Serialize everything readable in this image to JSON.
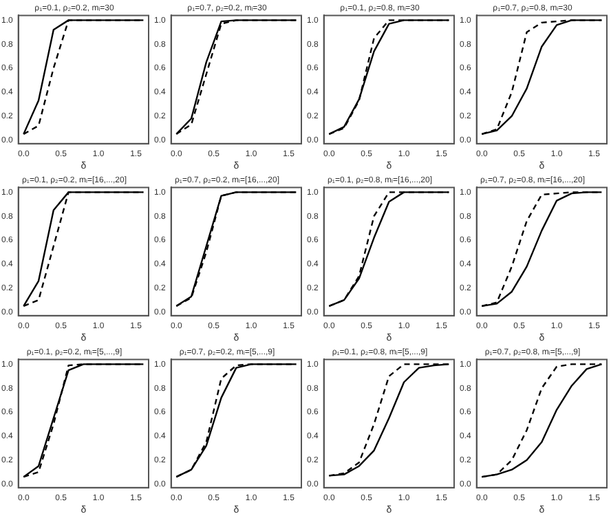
{
  "chart_data": [
    {
      "type": "line",
      "title": "ρ₁=0.1, ρ₂=0.2, mᵢ=30",
      "xlabel": "δ",
      "x": [
        0,
        0.2,
        0.4,
        0.6,
        0.8,
        1,
        1.2,
        1.4,
        1.6
      ],
      "series": [
        {
          "color": "#000000",
          "line_style": "solid",
          "values": [
            0.05,
            0.33,
            0.92,
            1,
            1,
            1,
            1,
            1,
            1
          ]
        },
        {
          "color": "#000000",
          "line_style": "dashed",
          "values": [
            0.05,
            0.12,
            0.6,
            1,
            1,
            1,
            1,
            1,
            1
          ]
        }
      ],
      "xlim": [
        -0.07,
        1.67
      ],
      "ylim": [
        -0.03,
        1.04
      ],
      "xticks": [
        {
          "value": 0,
          "label": "0.0"
        },
        {
          "value": 0.5,
          "label": "0.5"
        },
        {
          "value": 1,
          "label": "1.0"
        },
        {
          "value": 1.5,
          "label": "1.5"
        }
      ],
      "yticks": [
        {
          "value": 0,
          "label": "0.0"
        },
        {
          "value": 0.2,
          "label": "0.2"
        },
        {
          "value": 0.4,
          "label": "0.4"
        },
        {
          "value": 0.6,
          "label": "0.6"
        },
        {
          "value": 0.8,
          "label": "0.8"
        },
        {
          "value": 1,
          "label": "1.0"
        }
      ]
    },
    {
      "type": "line",
      "title": "ρ₁=0.7, ρ₂=0.2, mᵢ=30",
      "xlabel": "δ",
      "x": [
        0,
        0.2,
        0.4,
        0.6,
        0.8,
        1,
        1.2,
        1.4,
        1.6
      ],
      "series": [
        {
          "color": "#000000",
          "line_style": "solid",
          "values": [
            0.05,
            0.18,
            0.65,
            0.99,
            1,
            1,
            1,
            1,
            1
          ]
        },
        {
          "color": "#000000",
          "line_style": "dashed",
          "values": [
            0.05,
            0.13,
            0.55,
            0.97,
            1,
            1,
            1,
            1,
            1
          ]
        }
      ],
      "xlim": [
        -0.07,
        1.67
      ],
      "ylim": [
        -0.03,
        1.04
      ],
      "xticks": [
        {
          "value": 0,
          "label": "0.0"
        },
        {
          "value": 0.5,
          "label": "0.5"
        },
        {
          "value": 1,
          "label": "1.0"
        },
        {
          "value": 1.5,
          "label": "1.5"
        }
      ],
      "yticks": [
        {
          "value": 0,
          "label": "0.0"
        },
        {
          "value": 0.2,
          "label": "0.2"
        },
        {
          "value": 0.4,
          "label": "0.4"
        },
        {
          "value": 0.6,
          "label": "0.6"
        },
        {
          "value": 0.8,
          "label": "0.8"
        },
        {
          "value": 1,
          "label": "1.0"
        }
      ]
    },
    {
      "type": "line",
      "title": "ρ₁=0.1, ρ₂=0.8, mᵢ=30",
      "xlabel": "δ",
      "x": [
        0,
        0.2,
        0.4,
        0.6,
        0.8,
        1,
        1.2,
        1.4,
        1.6
      ],
      "series": [
        {
          "color": "#000000",
          "line_style": "solid",
          "values": [
            0.05,
            0.11,
            0.34,
            0.74,
            0.97,
            1,
            1,
            1,
            1
          ]
        },
        {
          "color": "#000000",
          "line_style": "dashed",
          "values": [
            0.05,
            0.1,
            0.33,
            0.85,
            1,
            1,
            1,
            1,
            1
          ]
        }
      ],
      "xlim": [
        -0.07,
        1.67
      ],
      "ylim": [
        -0.03,
        1.04
      ],
      "xticks": [
        {
          "value": 0,
          "label": "0.0"
        },
        {
          "value": 0.5,
          "label": "0.5"
        },
        {
          "value": 1,
          "label": "1.0"
        },
        {
          "value": 1.5,
          "label": "1.5"
        }
      ],
      "yticks": [
        {
          "value": 0,
          "label": "0.0"
        },
        {
          "value": 0.2,
          "label": "0.2"
        },
        {
          "value": 0.4,
          "label": "0.4"
        },
        {
          "value": 0.6,
          "label": "0.6"
        },
        {
          "value": 0.8,
          "label": "0.8"
        },
        {
          "value": 1,
          "label": "1.0"
        }
      ]
    },
    {
      "type": "line",
      "title": "ρ₁=0.7, ρ₂=0.8, mᵢ=30",
      "xlabel": "δ",
      "x": [
        0,
        0.2,
        0.4,
        0.6,
        0.8,
        1,
        1.2,
        1.4,
        1.6
      ],
      "series": [
        {
          "color": "#000000",
          "line_style": "solid",
          "values": [
            0.05,
            0.08,
            0.2,
            0.43,
            0.78,
            0.96,
            1,
            1,
            1
          ]
        },
        {
          "color": "#000000",
          "line_style": "dashed",
          "values": [
            0.05,
            0.09,
            0.4,
            0.9,
            0.98,
            0.99,
            1,
            1,
            1
          ]
        }
      ],
      "xlim": [
        -0.07,
        1.67
      ],
      "ylim": [
        -0.03,
        1.04
      ],
      "xticks": [
        {
          "value": 0,
          "label": "0.0"
        },
        {
          "value": 0.5,
          "label": "0.5"
        },
        {
          "value": 1,
          "label": "1.0"
        },
        {
          "value": 1.5,
          "label": "1.5"
        }
      ],
      "yticks": [
        {
          "value": 0,
          "label": "0.0"
        },
        {
          "value": 0.2,
          "label": "0.2"
        },
        {
          "value": 0.4,
          "label": "0.4"
        },
        {
          "value": 0.6,
          "label": "0.6"
        },
        {
          "value": 0.8,
          "label": "0.8"
        },
        {
          "value": 1,
          "label": "1.0"
        }
      ]
    },
    {
      "type": "line",
      "title": "ρ₁=0.1, ρ₂=0.2, mᵢ=[16,...,20]",
      "xlabel": "δ",
      "x": [
        0,
        0.2,
        0.4,
        0.6,
        0.8,
        1,
        1.2,
        1.4,
        1.6
      ],
      "series": [
        {
          "color": "#000000",
          "line_style": "solid",
          "values": [
            0.05,
            0.26,
            0.85,
            1,
            1,
            1,
            1,
            1,
            1
          ]
        },
        {
          "color": "#000000",
          "line_style": "dashed",
          "values": [
            0.05,
            0.1,
            0.55,
            1,
            1,
            1,
            1,
            1,
            1
          ]
        }
      ],
      "xlim": [
        -0.07,
        1.67
      ],
      "ylim": [
        -0.03,
        1.04
      ],
      "xticks": [
        {
          "value": 0,
          "label": "0.0"
        },
        {
          "value": 0.5,
          "label": "0.5"
        },
        {
          "value": 1,
          "label": "1.0"
        },
        {
          "value": 1.5,
          "label": "1.5"
        }
      ],
      "yticks": [
        {
          "value": 0,
          "label": "0.0"
        },
        {
          "value": 0.2,
          "label": "0.2"
        },
        {
          "value": 0.4,
          "label": "0.4"
        },
        {
          "value": 0.6,
          "label": "0.6"
        },
        {
          "value": 0.8,
          "label": "0.8"
        },
        {
          "value": 1,
          "label": "1.0"
        }
      ]
    },
    {
      "type": "line",
      "title": "ρ₁=0.7, ρ₂=0.2, mᵢ=[16,...,20]",
      "xlabel": "δ",
      "x": [
        0,
        0.2,
        0.4,
        0.6,
        0.8,
        1,
        1.2,
        1.4,
        1.6
      ],
      "series": [
        {
          "color": "#000000",
          "line_style": "solid",
          "values": [
            0.05,
            0.13,
            0.55,
            0.97,
            1,
            1,
            1,
            1,
            1
          ]
        },
        {
          "color": "#000000",
          "line_style": "dashed",
          "values": [
            0.05,
            0.12,
            0.5,
            0.97,
            1,
            1,
            1,
            1,
            1
          ]
        }
      ],
      "xlim": [
        -0.07,
        1.67
      ],
      "ylim": [
        -0.03,
        1.04
      ],
      "xticks": [
        {
          "value": 0,
          "label": "0.0"
        },
        {
          "value": 0.5,
          "label": "0.5"
        },
        {
          "value": 1,
          "label": "1.0"
        },
        {
          "value": 1.5,
          "label": "1.5"
        }
      ],
      "yticks": [
        {
          "value": 0,
          "label": "0.0"
        },
        {
          "value": 0.2,
          "label": "0.2"
        },
        {
          "value": 0.4,
          "label": "0.4"
        },
        {
          "value": 0.6,
          "label": "0.6"
        },
        {
          "value": 0.8,
          "label": "0.8"
        },
        {
          "value": 1,
          "label": "1.0"
        }
      ]
    },
    {
      "type": "line",
      "title": "ρ₁=0.1, ρ₂=0.8, mᵢ=[16,...,20]",
      "xlabel": "δ",
      "x": [
        0,
        0.2,
        0.4,
        0.6,
        0.8,
        1,
        1.2,
        1.4,
        1.6
      ],
      "series": [
        {
          "color": "#000000",
          "line_style": "solid",
          "values": [
            0.05,
            0.1,
            0.28,
            0.62,
            0.92,
            1,
            1,
            1,
            1
          ]
        },
        {
          "color": "#000000",
          "line_style": "dashed",
          "values": [
            0.05,
            0.1,
            0.3,
            0.8,
            1,
            1,
            1,
            1,
            1
          ]
        }
      ],
      "xlim": [
        -0.07,
        1.67
      ],
      "ylim": [
        -0.03,
        1.04
      ],
      "xticks": [
        {
          "value": 0,
          "label": "0.0"
        },
        {
          "value": 0.5,
          "label": "0.5"
        },
        {
          "value": 1,
          "label": "1.0"
        },
        {
          "value": 1.5,
          "label": "1.5"
        }
      ],
      "yticks": [
        {
          "value": 0,
          "label": "0.0"
        },
        {
          "value": 0.2,
          "label": "0.2"
        },
        {
          "value": 0.4,
          "label": "0.4"
        },
        {
          "value": 0.6,
          "label": "0.6"
        },
        {
          "value": 0.8,
          "label": "0.8"
        },
        {
          "value": 1,
          "label": "1.0"
        }
      ]
    },
    {
      "type": "line",
      "title": "ρ₁=0.7, ρ₂=0.8, mᵢ=[16,...,20]",
      "xlabel": "δ",
      "x": [
        0,
        0.2,
        0.4,
        0.6,
        0.8,
        1,
        1.2,
        1.4,
        1.6
      ],
      "series": [
        {
          "color": "#000000",
          "line_style": "solid",
          "values": [
            0.05,
            0.07,
            0.17,
            0.38,
            0.68,
            0.93,
            0.99,
            1,
            1
          ]
        },
        {
          "color": "#000000",
          "line_style": "dashed",
          "values": [
            0.05,
            0.08,
            0.38,
            0.76,
            0.98,
            0.99,
            1,
            1,
            1
          ]
        }
      ],
      "xlim": [
        -0.07,
        1.67
      ],
      "ylim": [
        -0.03,
        1.04
      ],
      "xticks": [
        {
          "value": 0,
          "label": "0.0"
        },
        {
          "value": 0.5,
          "label": "0.5"
        },
        {
          "value": 1,
          "label": "1.0"
        },
        {
          "value": 1.5,
          "label": "1.5"
        }
      ],
      "yticks": [
        {
          "value": 0,
          "label": "0.0"
        },
        {
          "value": 0.2,
          "label": "0.2"
        },
        {
          "value": 0.4,
          "label": "0.4"
        },
        {
          "value": 0.6,
          "label": "0.6"
        },
        {
          "value": 0.8,
          "label": "0.8"
        },
        {
          "value": 1,
          "label": "1.0"
        }
      ]
    },
    {
      "type": "line",
      "title": "ρ₁=0.1, ρ₂=0.2, mᵢ=[5,...,9]",
      "xlabel": "δ",
      "x": [
        0,
        0.2,
        0.4,
        0.6,
        0.8,
        1,
        1.2,
        1.4,
        1.6
      ],
      "series": [
        {
          "color": "#000000",
          "line_style": "solid",
          "values": [
            0.06,
            0.15,
            0.55,
            0.95,
            1,
            1,
            1,
            1,
            1
          ]
        },
        {
          "color": "#000000",
          "line_style": "dashed",
          "values": [
            0.06,
            0.1,
            0.5,
            0.99,
            1,
            1,
            1,
            1,
            1
          ]
        }
      ],
      "xlim": [
        -0.07,
        1.67
      ],
      "ylim": [
        -0.03,
        1.04
      ],
      "xticks": [
        {
          "value": 0,
          "label": "0.0"
        },
        {
          "value": 0.5,
          "label": "0.5"
        },
        {
          "value": 1,
          "label": "1.0"
        },
        {
          "value": 1.5,
          "label": "1.5"
        }
      ],
      "yticks": [
        {
          "value": 0,
          "label": "0.0"
        },
        {
          "value": 0.2,
          "label": "0.2"
        },
        {
          "value": 0.4,
          "label": "0.4"
        },
        {
          "value": 0.6,
          "label": "0.6"
        },
        {
          "value": 0.8,
          "label": "0.8"
        },
        {
          "value": 1,
          "label": "1.0"
        }
      ]
    },
    {
      "type": "line",
      "title": "ρ₁=0.7, ρ₂=0.2, mᵢ=[5,...,9]",
      "xlabel": "δ",
      "x": [
        0,
        0.2,
        0.4,
        0.6,
        0.8,
        1,
        1.2,
        1.4,
        1.6
      ],
      "series": [
        {
          "color": "#000000",
          "line_style": "solid",
          "values": [
            0.06,
            0.12,
            0.32,
            0.72,
            0.97,
            1,
            1,
            1,
            1
          ]
        },
        {
          "color": "#000000",
          "line_style": "dashed",
          "values": [
            0.06,
            0.12,
            0.35,
            0.88,
            0.99,
            1,
            1,
            1,
            1
          ]
        }
      ],
      "xlim": [
        -0.07,
        1.67
      ],
      "ylim": [
        -0.03,
        1.04
      ],
      "xticks": [
        {
          "value": 0,
          "label": "0.0"
        },
        {
          "value": 0.5,
          "label": "0.5"
        },
        {
          "value": 1,
          "label": "1.0"
        },
        {
          "value": 1.5,
          "label": "1.5"
        }
      ],
      "yticks": [
        {
          "value": 0,
          "label": "0.0"
        },
        {
          "value": 0.2,
          "label": "0.2"
        },
        {
          "value": 0.4,
          "label": "0.4"
        },
        {
          "value": 0.6,
          "label": "0.6"
        },
        {
          "value": 0.8,
          "label": "0.8"
        },
        {
          "value": 1,
          "label": "1.0"
        }
      ]
    },
    {
      "type": "line",
      "title": "ρ₁=0.1, ρ₂=0.8, mᵢ=[5,...,9]",
      "xlabel": "δ",
      "x": [
        0,
        0.2,
        0.4,
        0.6,
        0.8,
        1,
        1.2,
        1.4,
        1.6
      ],
      "series": [
        {
          "color": "#000000",
          "line_style": "solid",
          "values": [
            0.07,
            0.08,
            0.15,
            0.28,
            0.55,
            0.85,
            0.97,
            0.99,
            1
          ]
        },
        {
          "color": "#000000",
          "line_style": "dashed",
          "values": [
            0.07,
            0.09,
            0.18,
            0.5,
            0.9,
            1,
            1,
            1,
            1
          ]
        }
      ],
      "xlim": [
        -0.07,
        1.67
      ],
      "ylim": [
        -0.03,
        1.04
      ],
      "xticks": [
        {
          "value": 0,
          "label": "0.0"
        },
        {
          "value": 0.5,
          "label": "0.5"
        },
        {
          "value": 1,
          "label": "1.0"
        },
        {
          "value": 1.5,
          "label": "1.5"
        }
      ],
      "yticks": [
        {
          "value": 0,
          "label": "0.0"
        },
        {
          "value": 0.2,
          "label": "0.2"
        },
        {
          "value": 0.4,
          "label": "0.4"
        },
        {
          "value": 0.6,
          "label": "0.6"
        },
        {
          "value": 0.8,
          "label": "0.8"
        },
        {
          "value": 1,
          "label": "1.0"
        }
      ]
    },
    {
      "type": "line",
      "title": "ρ₁=0.7, ρ₂=0.8, mᵢ=[5,...,9]",
      "xlabel": "δ",
      "x": [
        0,
        0.2,
        0.4,
        0.6,
        0.8,
        1,
        1.2,
        1.4,
        1.6
      ],
      "series": [
        {
          "color": "#000000",
          "line_style": "solid",
          "values": [
            0.06,
            0.08,
            0.12,
            0.2,
            0.35,
            0.62,
            0.82,
            0.96,
            1
          ]
        },
        {
          "color": "#000000",
          "line_style": "dashed",
          "values": [
            0.06,
            0.08,
            0.2,
            0.45,
            0.8,
            0.98,
            1,
            1,
            1
          ]
        }
      ],
      "xlim": [
        -0.07,
        1.67
      ],
      "ylim": [
        -0.03,
        1.04
      ],
      "xticks": [
        {
          "value": 0,
          "label": "0.0"
        },
        {
          "value": 0.5,
          "label": "0.5"
        },
        {
          "value": 1,
          "label": "1.0"
        },
        {
          "value": 1.5,
          "label": "1.5"
        }
      ],
      "yticks": [
        {
          "value": 0,
          "label": "0.0"
        },
        {
          "value": 0.2,
          "label": "0.2"
        },
        {
          "value": 0.4,
          "label": "0.4"
        },
        {
          "value": 0.6,
          "label": "0.6"
        },
        {
          "value": 0.8,
          "label": "0.8"
        },
        {
          "value": 1,
          "label": "1.0"
        }
      ]
    }
  ]
}
